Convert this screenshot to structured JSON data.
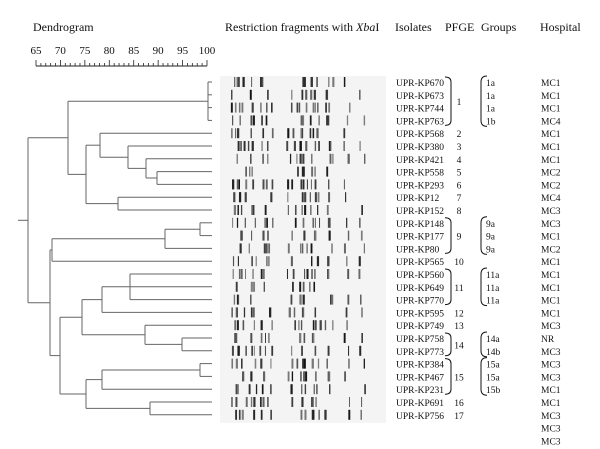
{
  "headers": {
    "dendrogram": "Dendrogram",
    "restriction_prefix": "Restriction fragments with ",
    "restriction_enzyme": "Xba",
    "restriction_suffix": "I",
    "isolates": "Isolates",
    "pfge": "PFGE",
    "groups": "Groups",
    "hospital": "Hospital"
  },
  "scale": {
    "ticks": [
      "65",
      "70",
      "75",
      "80",
      "85",
      "90",
      "95",
      "100"
    ],
    "min": 65,
    "max": 100
  },
  "rows": [
    {
      "isolate": "UPR-KP670",
      "group": "1a",
      "hospital": "MC1"
    },
    {
      "isolate": "UPR-KP673",
      "group": "1a",
      "hospital": "MC1"
    },
    {
      "isolate": "UPR-KP744",
      "group": "1a",
      "hospital": "MC1"
    },
    {
      "isolate": "UPR-KP763",
      "group": "1b",
      "hospital": "MC4"
    },
    {
      "isolate": "UPR-KP568",
      "group": "",
      "hospital": "MC1"
    },
    {
      "isolate": "UPR-KP380",
      "group": "",
      "hospital": "MC1"
    },
    {
      "isolate": "UPR-KP421",
      "group": "",
      "hospital": "MC1"
    },
    {
      "isolate": "UPR-KP558",
      "group": "",
      "hospital": "MC2"
    },
    {
      "isolate": "UPR-KP293",
      "group": "",
      "hospital": "MC2"
    },
    {
      "isolate": "UPR-KP12",
      "group": "",
      "hospital": "MC4"
    },
    {
      "isolate": "UPR-KP152",
      "group": "",
      "hospital": "MC3"
    },
    {
      "isolate": "UPR-KP148",
      "group": "9a",
      "hospital": "MC3"
    },
    {
      "isolate": "UPR-KP177",
      "group": "9a",
      "hospital": "MC1"
    },
    {
      "isolate": "UPR-KP80",
      "group": "9a",
      "hospital": "MC2"
    },
    {
      "isolate": "UPR-KP565",
      "group": "",
      "hospital": "MC1"
    },
    {
      "isolate": "UPR-KP560",
      "group": "11a",
      "hospital": "MC1"
    },
    {
      "isolate": "UPR-KP649",
      "group": "11a",
      "hospital": "MC1"
    },
    {
      "isolate": "UPR-KP770",
      "group": "11a",
      "hospital": "MC1"
    },
    {
      "isolate": "UPR-KP595",
      "group": "",
      "hospital": "MC1"
    },
    {
      "isolate": "UPR-KP749",
      "group": "",
      "hospital": "MC3"
    },
    {
      "isolate": "UPR-KP758",
      "group": "14a",
      "hospital": "NR"
    },
    {
      "isolate": "UPR-KP773",
      "group": "14b",
      "hospital": "MC3"
    },
    {
      "isolate": "UPR-KP384",
      "group": "15a",
      "hospital": "MC3"
    },
    {
      "isolate": "UPR-KP467",
      "group": "15a",
      "hospital": "MC3"
    },
    {
      "isolate": "UPR-KP231",
      "group": "15b",
      "hospital": "MC1"
    },
    {
      "isolate": "UPR-KP691",
      "group": "",
      "hospital": "MC1"
    },
    {
      "isolate": "UPR-KP756",
      "group": "",
      "hospital": "MC3"
    }
  ],
  "hospital_extra": [
    "MC3",
    "MC3"
  ],
  "pfge_types": [
    {
      "label": "1",
      "first": 0,
      "last": 3
    },
    {
      "label": "2",
      "first": 4,
      "last": 4
    },
    {
      "label": "3",
      "first": 5,
      "last": 5
    },
    {
      "label": "4",
      "first": 6,
      "last": 6
    },
    {
      "label": "5",
      "first": 7,
      "last": 7
    },
    {
      "label": "6",
      "first": 8,
      "last": 8
    },
    {
      "label": "7",
      "first": 9,
      "last": 9
    },
    {
      "label": "8",
      "first": 10,
      "last": 10
    },
    {
      "label": "9",
      "first": 11,
      "last": 13
    },
    {
      "label": "10",
      "first": 14,
      "last": 14
    },
    {
      "label": "11",
      "first": 15,
      "last": 17
    },
    {
      "label": "12",
      "first": 18,
      "last": 18
    },
    {
      "label": "13",
      "first": 19,
      "last": 19
    },
    {
      "label": "14",
      "first": 20,
      "last": 21
    },
    {
      "label": "15",
      "first": 22,
      "last": 24
    },
    {
      "label": "16",
      "first": 25,
      "last": 25
    },
    {
      "label": "17",
      "first": 26,
      "last": 26
    }
  ]
}
